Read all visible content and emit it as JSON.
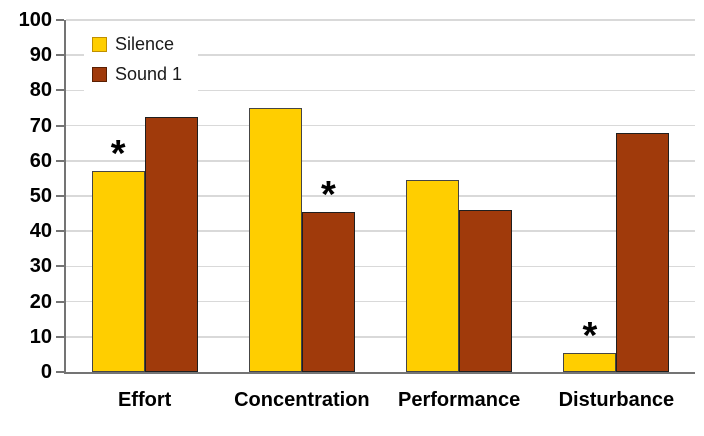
{
  "chart_data": {
    "type": "bar",
    "title": "",
    "categories": [
      "Effort",
      "Concentration",
      "Performance",
      "Disturbance"
    ],
    "series": [
      {
        "name": "Silence",
        "color": "#FFCE00",
        "border_color": "#454545",
        "values": [
          57,
          75,
          54.5,
          5.5
        ]
      },
      {
        "name": "Sound 1",
        "color": "#A03A0B",
        "border_color": "#1F1F1F",
        "values": [
          72.5,
          45.5,
          46,
          68
        ]
      }
    ],
    "ylim": [
      0,
      100
    ],
    "yticks": [
      0,
      10,
      20,
      30,
      40,
      50,
      60,
      70,
      80,
      90,
      100
    ],
    "grid": "horizontal",
    "gridline_color": "#D9D9D9",
    "axis_color": "#747474",
    "legend_position": "top-left-inside",
    "significance_symbol": "*",
    "significance_marks": [
      {
        "category": "Effort",
        "series": "Silence"
      },
      {
        "category": "Concentration",
        "series": "Sound 1"
      },
      {
        "category": "Disturbance",
        "series": "Silence"
      }
    ]
  },
  "legend": {
    "items": [
      {
        "label": "Silence",
        "swatch_color": "#FFCE00",
        "swatch_border": "#BF8F00"
      },
      {
        "label": "Sound 1",
        "swatch_color": "#A03A0B",
        "swatch_border": "#5A1F02"
      }
    ]
  }
}
